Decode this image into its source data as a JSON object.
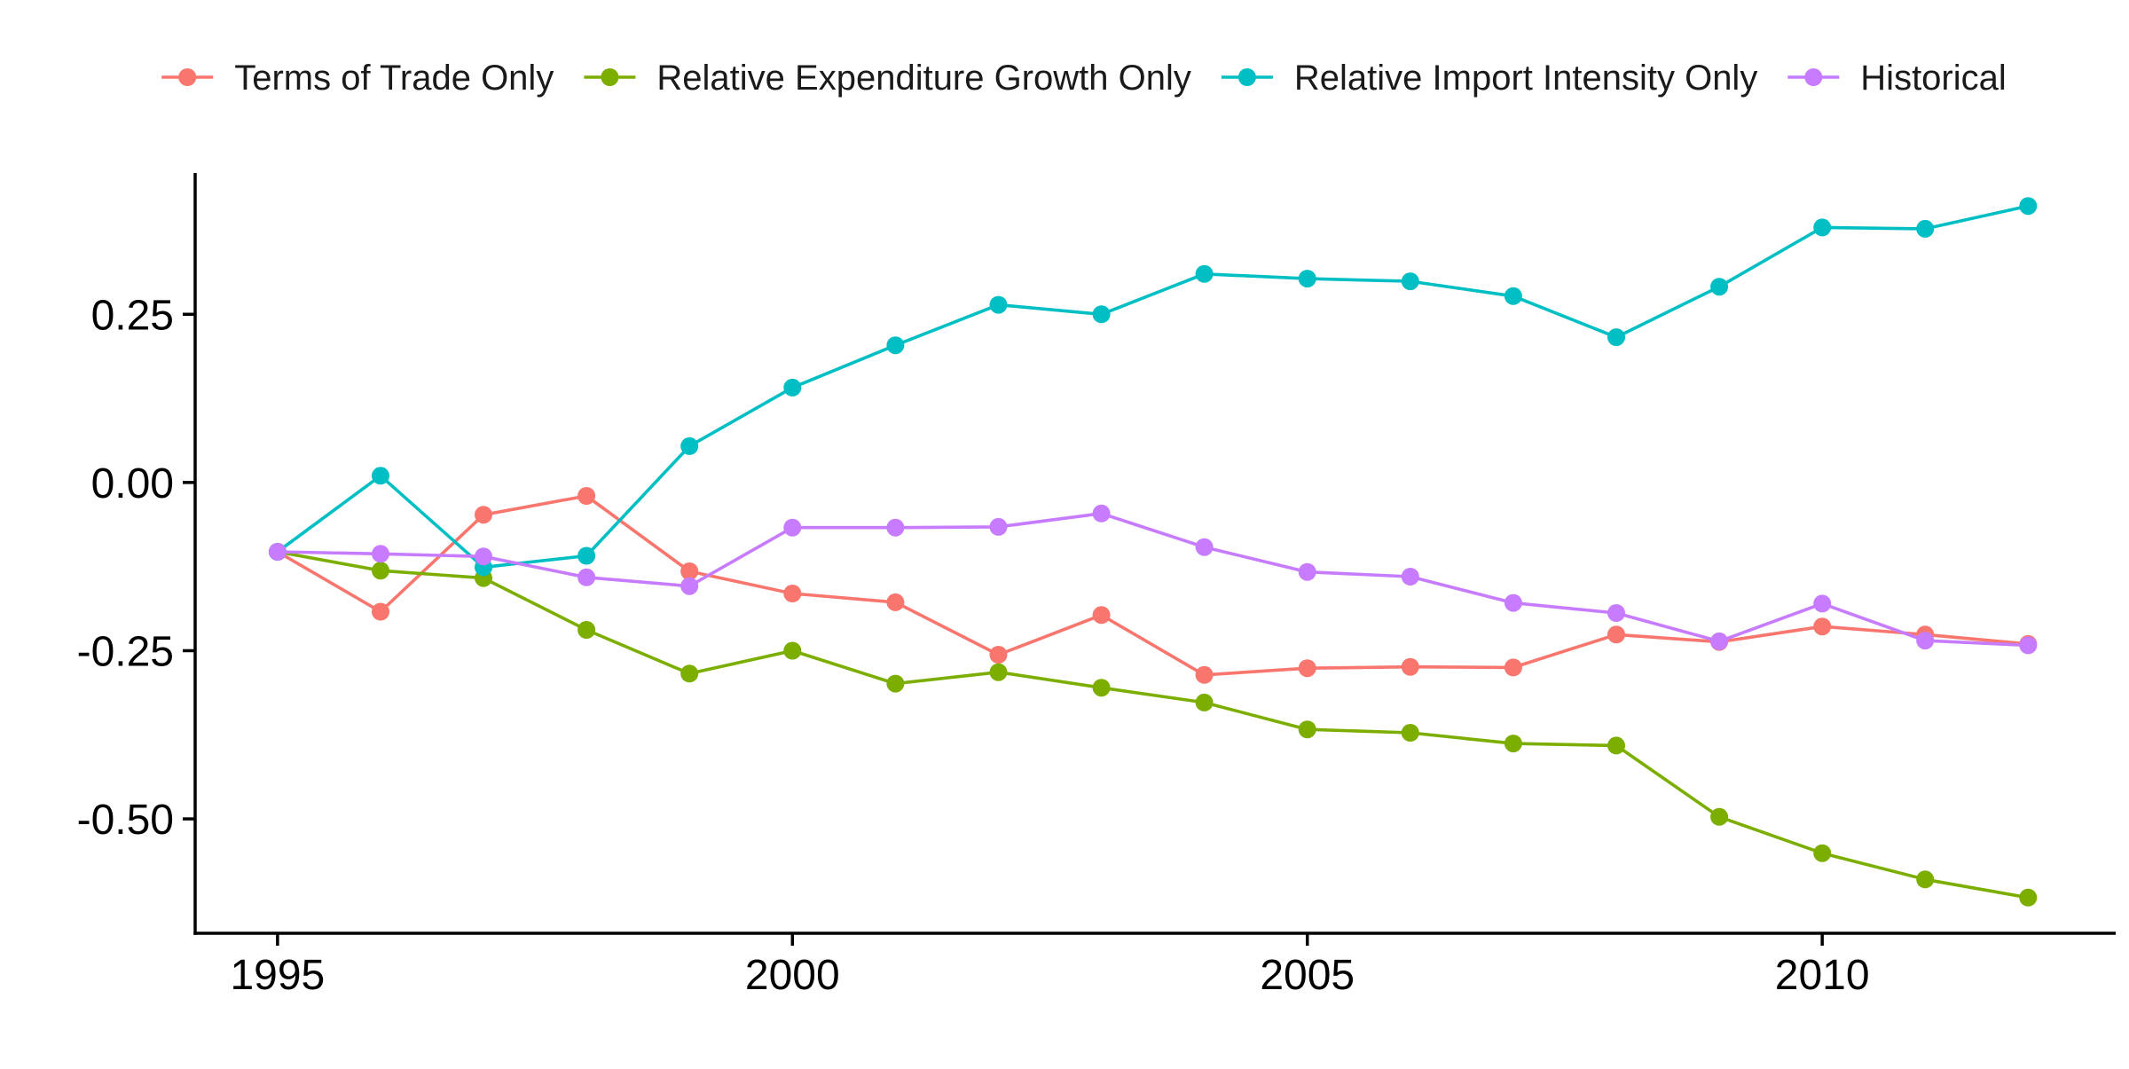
{
  "chart_data": {
    "type": "line",
    "title": "",
    "xlabel": "",
    "ylabel": "",
    "xlim": [
      1994.2,
      2012.85
    ],
    "ylim": [
      -0.67,
      0.46
    ],
    "x_ticks": [
      1995,
      2000,
      2005,
      2010
    ],
    "x_tick_labels": [
      "1995",
      "2000",
      "2005",
      "2010"
    ],
    "y_ticks": [
      0.25,
      0.0,
      -0.25,
      -0.5
    ],
    "y_tick_labels": [
      "0.25",
      "0.00",
      "-0.25",
      "-0.50"
    ],
    "grid": false,
    "legend_position": "top",
    "x": [
      1995,
      1996,
      1997,
      1998,
      1999,
      2000,
      2001,
      2002,
      2003,
      2004,
      2005,
      2006,
      2007,
      2008,
      2009,
      2010,
      2011,
      2012
    ],
    "series": [
      {
        "name": "Terms of Trade Only",
        "color": "#F8766D",
        "values": [
          -0.103,
          -0.192,
          -0.048,
          -0.02,
          -0.132,
          -0.165,
          -0.178,
          -0.256,
          -0.197,
          -0.286,
          -0.276,
          -0.274,
          -0.275,
          -0.226,
          -0.237,
          -0.214,
          -0.226,
          -0.24
        ]
      },
      {
        "name": "Relative Expenditure Growth Only",
        "color": "#7CAE00",
        "values": [
          -0.103,
          -0.131,
          -0.142,
          -0.219,
          -0.284,
          -0.25,
          -0.299,
          -0.282,
          -0.305,
          -0.327,
          -0.367,
          -0.372,
          -0.388,
          -0.391,
          -0.497,
          -0.551,
          -0.59,
          -0.617
        ]
      },
      {
        "name": "Relative Import Intensity Only",
        "color": "#00BFC4",
        "values": [
          -0.103,
          0.01,
          -0.126,
          -0.109,
          0.054,
          0.141,
          0.204,
          0.264,
          0.25,
          0.31,
          0.303,
          0.299,
          0.277,
          0.216,
          0.291,
          0.379,
          0.377,
          0.411
        ]
      },
      {
        "name": "Historical",
        "color": "#C77CFF",
        "values": [
          -0.103,
          -0.106,
          -0.11,
          -0.141,
          -0.154,
          -0.067,
          -0.067,
          -0.066,
          -0.046,
          -0.096,
          -0.133,
          -0.14,
          -0.179,
          -0.194,
          -0.236,
          -0.18,
          -0.235,
          -0.242
        ]
      }
    ]
  }
}
